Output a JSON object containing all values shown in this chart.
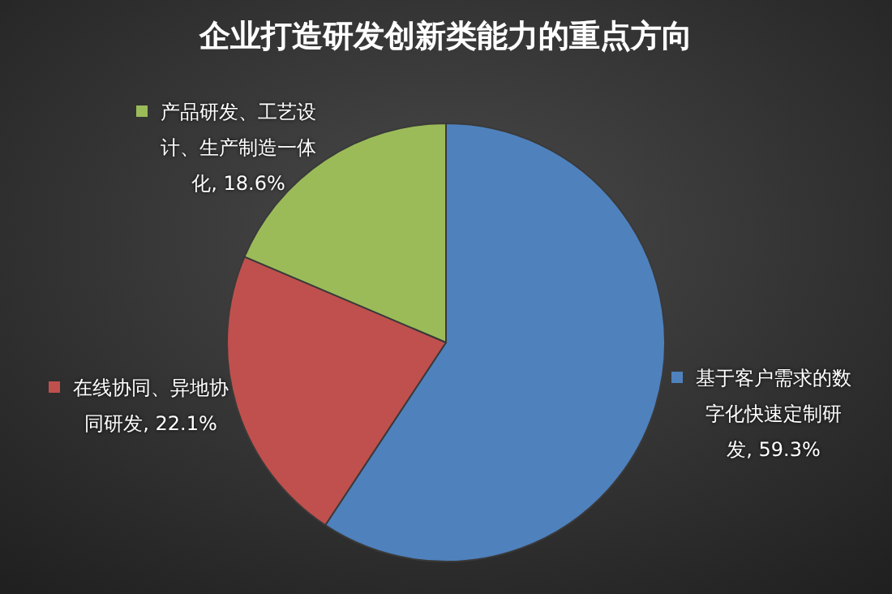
{
  "chart_data": {
    "type": "pie",
    "title": "企业打造研发创新类能力的重点方向",
    "categories": [
      "基于客户需求的数字化快速定制研发",
      "在线协同、异地协同研发",
      "产品研发、工艺设计、生产制造一体化"
    ],
    "values": [
      59.3,
      22.1,
      18.6
    ],
    "value_labels": [
      "59.3%",
      "22.1%",
      "18.6%"
    ],
    "colors": [
      "#4f81bd",
      "#c0504d",
      "#9bbb59"
    ],
    "data_labels": true,
    "legend": "left"
  }
}
